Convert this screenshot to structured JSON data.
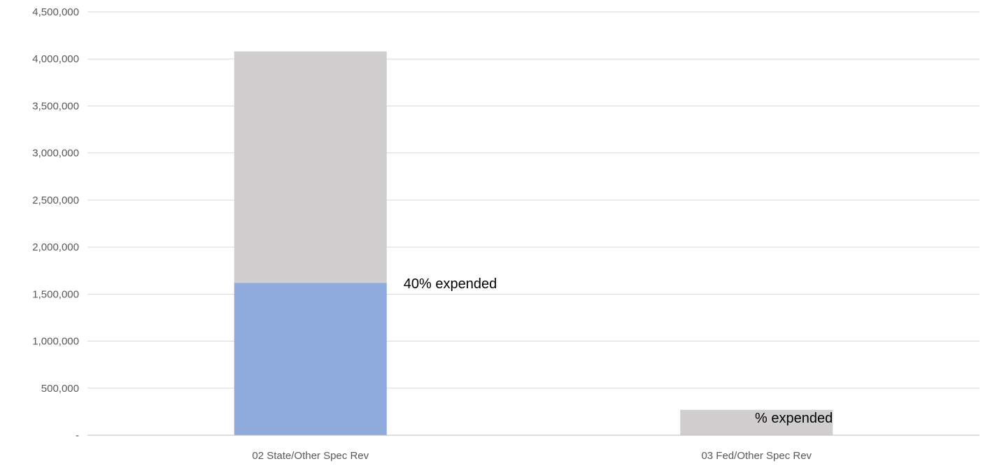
{
  "chart_data": {
    "type": "bar",
    "stacked": true,
    "categories": [
      "02 State/Other Spec Rev",
      "03 Fed/Other Spec Rev"
    ],
    "series": [
      {
        "values": [
          1620000,
          0
        ],
        "color": "#8faadc"
      },
      {
        "values": [
          2460000,
          270000
        ],
        "color": "#d0cece"
      }
    ],
    "annotations": [
      "40% expended",
      "% expended"
    ],
    "yticks": [
      0,
      500000,
      1000000,
      1500000,
      2000000,
      2500000,
      3000000,
      3500000,
      4000000,
      4500000
    ],
    "ytick_labels": [
      "-",
      "500,000",
      "1,000,000",
      "1,500,000",
      "2,000,000",
      "2,500,000",
      "3,000,000",
      "3,500,000",
      "4,000,000",
      "4,500,000"
    ],
    "ylim": [
      0,
      4500000
    ],
    "grid": true,
    "gridline_color": "#d9d9d9",
    "axis_line_color": "#bfbfbf"
  }
}
